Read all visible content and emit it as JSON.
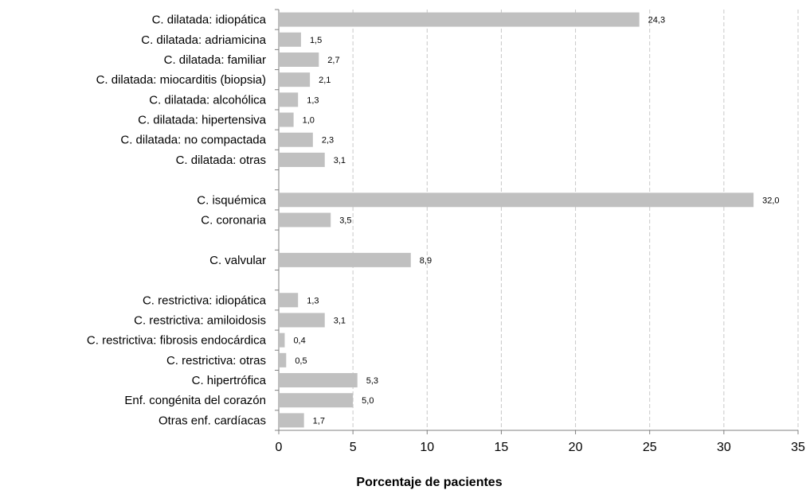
{
  "chart_data": {
    "type": "bar",
    "orientation": "horizontal",
    "title": "",
    "xlabel": "Porcentaje de pacientes",
    "ylabel": "",
    "xlim": [
      0,
      35
    ],
    "xticks": [
      0,
      5,
      10,
      15,
      20,
      25,
      30,
      35
    ],
    "grid": "vertical-dashed",
    "bar_color": "#c0c0c0",
    "categories": [
      "C. dilatada: idiopática",
      "C. dilatada: adriamicina",
      "C. dilatada: familiar",
      "C. dilatada: miocarditis (biopsia)",
      "C. dilatada: alcohólica",
      "C. dilatada: hipertensiva",
      "C. dilatada: no compactada",
      "C. dilatada: otras",
      "",
      "C. isquémica",
      "C. coronaria",
      "",
      "C. valvular",
      "",
      "C. restrictiva: idiopática",
      "C. restrictiva: amiloidosis",
      "C. restrictiva: fibrosis endocárdica",
      "C. restrictiva: otras",
      "C. hipertrófica",
      "Enf. congénita del corazón",
      "Otras enf. cardíacas"
    ],
    "values": [
      24.3,
      1.5,
      2.7,
      2.1,
      1.3,
      1.0,
      2.3,
      3.1,
      null,
      32.0,
      3.5,
      null,
      8.9,
      null,
      1.3,
      3.1,
      0.4,
      0.5,
      5.3,
      5.0,
      1.7
    ],
    "data_labels": [
      "24,3",
      "1,5",
      "2,7",
      "2,1",
      "1,3",
      "1,0",
      "2,3",
      "3,1",
      "",
      "32,0",
      "3,5",
      "",
      "8,9",
      "",
      "1,3",
      "3,1",
      "0,4",
      "0,5",
      "5,3",
      "5,0",
      "1,7"
    ]
  }
}
